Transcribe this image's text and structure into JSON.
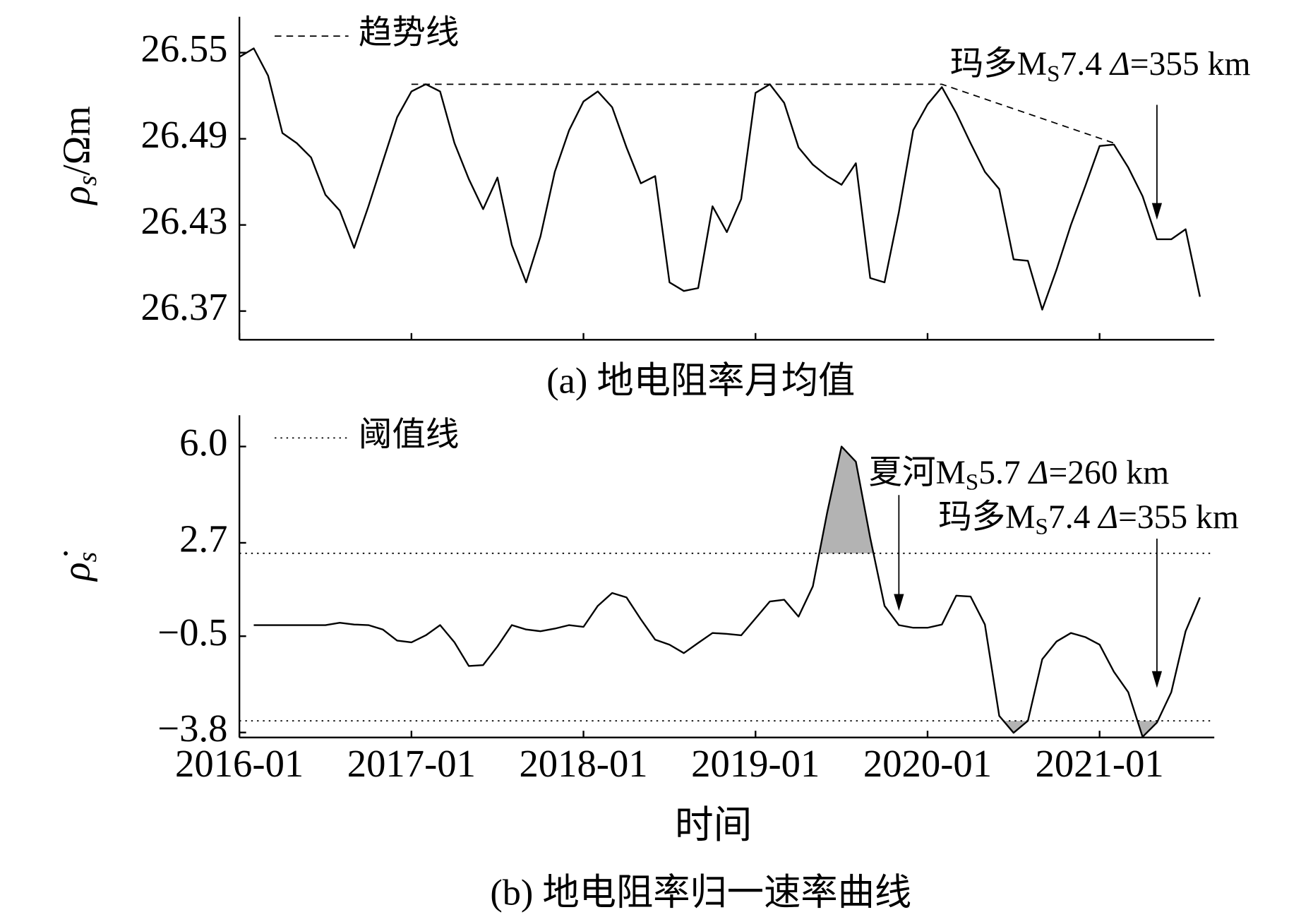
{
  "chart_data": [
    {
      "type": "line",
      "subtitle": "(a) 地电阻率月均值",
      "ylabel_parts": [
        "ρ",
        "s",
        "/Ωm"
      ],
      "x": [
        "2016-01",
        "2016-02",
        "2016-03",
        "2016-04",
        "2016-05",
        "2016-06",
        "2016-07",
        "2016-08",
        "2016-09",
        "2016-10",
        "2016-11",
        "2016-12",
        "2017-01",
        "2017-02",
        "2017-03",
        "2017-04",
        "2017-05",
        "2017-06",
        "2017-07",
        "2017-08",
        "2017-09",
        "2017-10",
        "2017-11",
        "2017-12",
        "2018-01",
        "2018-02",
        "2018-03",
        "2018-04",
        "2018-05",
        "2018-06",
        "2018-07",
        "2018-08",
        "2018-09",
        "2018-10",
        "2018-11",
        "2018-12",
        "2019-01",
        "2019-02",
        "2019-03",
        "2019-04",
        "2019-05",
        "2019-06",
        "2019-07",
        "2019-08",
        "2019-09",
        "2019-10",
        "2019-11",
        "2019-12",
        "2020-01",
        "2020-02",
        "2020-03",
        "2020-04",
        "2020-05",
        "2020-06",
        "2020-07",
        "2020-08",
        "2020-09",
        "2020-10",
        "2020-11",
        "2020-12",
        "2021-01",
        "2021-02",
        "2021-03",
        "2021-04",
        "2021-05",
        "2021-06",
        "2021-07",
        "2021-08"
      ],
      "xlim": [
        "2016-01",
        "2021-09"
      ],
      "ylim": [
        26.35,
        26.575
      ],
      "yticks": [
        26.37,
        26.43,
        26.49,
        26.55
      ],
      "series": [
        {
          "color": "#000000",
          "values": [
            26.547,
            26.553,
            26.534,
            26.494,
            26.487,
            26.477,
            26.451,
            26.44,
            26.414,
            26.443,
            26.474,
            26.505,
            26.523,
            26.528,
            26.523,
            26.487,
            26.462,
            26.441,
            26.463,
            26.416,
            26.39,
            26.422,
            26.467,
            26.496,
            26.516,
            26.523,
            26.512,
            26.484,
            26.459,
            26.464,
            26.39,
            26.384,
            26.386,
            26.443,
            26.425,
            26.448,
            26.522,
            26.528,
            26.515,
            26.484,
            26.472,
            26.464,
            26.458,
            26.473,
            26.393,
            26.39,
            26.439,
            26.496,
            26.514,
            26.526,
            26.508,
            26.487,
            26.467,
            26.455,
            26.406,
            26.405,
            26.371,
            26.399,
            26.43,
            26.457,
            26.485,
            26.486,
            26.47,
            26.45,
            26.42,
            26.42,
            26.427,
            26.38
          ]
        }
      ],
      "trend": {
        "name": "趋势线",
        "x": [
          "2017-01",
          "2020-02",
          "2021-02"
        ],
        "values": [
          26.528,
          26.528,
          26.487
        ]
      },
      "legend": "upper left",
      "annotations": [
        {
          "text_parts": [
            "玛多M",
            "S",
            "7.4 ",
            "Δ",
            "=355 km"
          ],
          "x": "2021-05"
        }
      ]
    },
    {
      "type": "line",
      "subtitle": "(b) 地电阻率归一速率曲线",
      "xlabel": "时间",
      "ylabel_parts": [
        "ρ̇",
        "s"
      ],
      "x": [
        "2016-01",
        "2016-02",
        "2016-03",
        "2016-04",
        "2016-05",
        "2016-06",
        "2016-07",
        "2016-08",
        "2016-09",
        "2016-10",
        "2016-11",
        "2016-12",
        "2017-01",
        "2017-02",
        "2017-03",
        "2017-04",
        "2017-05",
        "2017-06",
        "2017-07",
        "2017-08",
        "2017-09",
        "2017-10",
        "2017-11",
        "2017-12",
        "2018-01",
        "2018-02",
        "2018-03",
        "2018-04",
        "2018-05",
        "2018-06",
        "2018-07",
        "2018-08",
        "2018-09",
        "2018-10",
        "2018-11",
        "2018-12",
        "2019-01",
        "2019-02",
        "2019-03",
        "2019-04",
        "2019-05",
        "2019-06",
        "2019-07",
        "2019-08",
        "2019-09",
        "2019-10",
        "2019-11",
        "2019-12",
        "2020-01",
        "2020-02",
        "2020-03",
        "2020-04",
        "2020-05",
        "2020-06",
        "2020-07",
        "2020-08",
        "2020-09",
        "2020-10",
        "2020-11",
        "2020-12",
        "2021-01",
        "2021-02",
        "2021-03",
        "2021-04",
        "2021-05",
        "2021-06",
        "2021-07",
        "2021-08"
      ],
      "xlim": [
        "2016-01",
        "2021-09"
      ],
      "xticks": [
        "2016-01",
        "2017-01",
        "2018-01",
        "2019-01",
        "2020-01",
        "2021-01"
      ],
      "ylim": [
        -3.97,
        7.07
      ],
      "yticks": [
        {
          "value": 6,
          "label": "6.0"
        },
        2.7,
        {
          "value": -0.5,
          "label": "−0.5"
        },
        {
          "value": -3.8,
          "label": "−3.8"
        }
      ],
      "series": [
        {
          "color": "#000000",
          "values": [
            null,
            -0.12,
            -0.12,
            -0.12,
            -0.12,
            -0.12,
            -0.12,
            -0.04,
            -0.1,
            -0.12,
            -0.27,
            -0.65,
            -0.71,
            -0.47,
            -0.12,
            -0.71,
            -1.52,
            -1.49,
            -0.85,
            -0.12,
            -0.27,
            -0.33,
            -0.24,
            -0.12,
            -0.18,
            0.54,
            0.98,
            0.83,
            0.08,
            -0.62,
            -0.79,
            -1.08,
            -0.73,
            -0.39,
            -0.42,
            -0.47,
            0.11,
            0.69,
            0.75,
            0.17,
            1.21,
            3.74,
            6.0,
            5.48,
            2.87,
            0.54,
            -0.12,
            -0.21,
            -0.21,
            -0.1,
            0.89,
            0.86,
            -0.1,
            -3.23,
            -3.81,
            -3.4,
            -1.29,
            -0.68,
            -0.39,
            -0.53,
            -0.79,
            -1.72,
            -2.42,
            -3.95,
            -3.46,
            -2.42,
            -0.33,
            0.83
          ]
        }
      ],
      "threshold": {
        "name": "阈值线",
        "values": [
          2.34,
          -3.4
        ]
      },
      "shade_color": "#b3b3b3",
      "legend": "upper left",
      "annotations": [
        {
          "text_parts": [
            "夏河M",
            "S",
            "5.7 ",
            "Δ",
            "=260 km"
          ],
          "x": "2019-11"
        },
        {
          "text_parts": [
            "玛多M",
            "S",
            "7.4 ",
            "Δ",
            "=355 km"
          ],
          "x": "2021-05"
        }
      ]
    }
  ]
}
